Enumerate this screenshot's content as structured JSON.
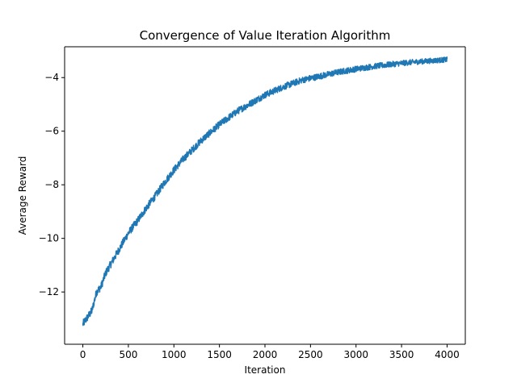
{
  "chart_data": {
    "type": "line",
    "title": "Convergence of Value Iteration Algorithm",
    "xlabel": "Iteration",
    "ylabel": "Average Reward",
    "xlim": [
      -200,
      4200
    ],
    "ylim": [
      -13.95,
      -2.85
    ],
    "xticks": [
      0,
      500,
      1000,
      1500,
      2000,
      2500,
      3000,
      3500,
      4000
    ],
    "xtick_labels": [
      "0",
      "500",
      "1000",
      "1500",
      "2000",
      "2500",
      "3000",
      "3500",
      "4000"
    ],
    "yticks": [
      -12,
      -10,
      -8,
      -6,
      -4
    ],
    "ytick_labels": [
      "−12",
      "−10",
      "−8",
      "−6",
      "−4"
    ],
    "grid": false,
    "legend": "none",
    "series": [
      {
        "color": "#1f77b4",
        "noise_band": 0.3,
        "x": [
          0,
          50,
          100,
          150,
          200,
          250,
          300,
          400,
          500,
          600,
          700,
          800,
          900,
          1000,
          1100,
          1200,
          1300,
          1400,
          1500,
          1600,
          1700,
          1800,
          1900,
          2000,
          2200,
          2400,
          2600,
          2800,
          3000,
          3200,
          3400,
          3600,
          3800,
          4000
        ],
        "y": [
          -13.2,
          -12.95,
          -12.7,
          -12.0,
          -11.8,
          -11.3,
          -11.0,
          -10.4,
          -9.8,
          -9.35,
          -8.85,
          -8.4,
          -7.9,
          -7.45,
          -7.05,
          -6.7,
          -6.35,
          -6.05,
          -5.75,
          -5.5,
          -5.25,
          -5.05,
          -4.85,
          -4.65,
          -4.35,
          -4.1,
          -3.95,
          -3.8,
          -3.68,
          -3.58,
          -3.5,
          -3.43,
          -3.38,
          -3.33
        ]
      }
    ]
  }
}
